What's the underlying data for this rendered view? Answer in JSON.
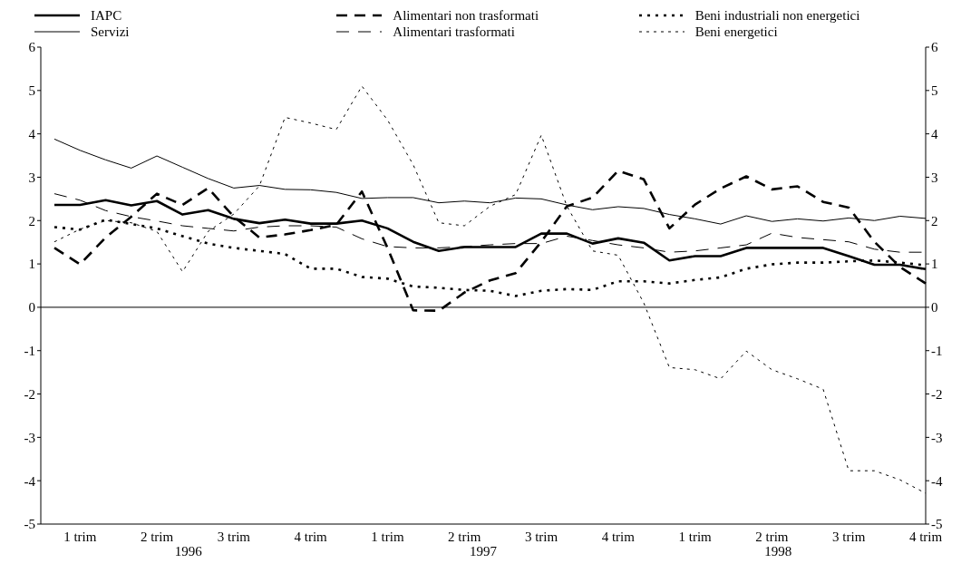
{
  "chart_data": {
    "type": "line",
    "categories": [
      null,
      "1 trim",
      null,
      null,
      "2 trim",
      null,
      null,
      "3 trim",
      null,
      null,
      "4 trim",
      null,
      null,
      "1 trim",
      null,
      null,
      "2 trim",
      null,
      null,
      "3 trim",
      null,
      null,
      "4 trim",
      null,
      null,
      "1 trim",
      null,
      null,
      "2 trim",
      null,
      null,
      "3 trim",
      null,
      null,
      "4 trim"
    ],
    "series": [
      {
        "name": "IAPC",
        "color": "#000000",
        "line_style": "solid",
        "values": [
          2.36,
          2.36,
          2.47,
          2.35,
          2.45,
          2.14,
          2.24,
          2.04,
          1.94,
          2.02,
          1.93,
          1.93,
          2.0,
          1.82,
          1.51,
          1.3,
          1.39,
          1.39,
          1.39,
          1.7,
          1.7,
          1.47,
          1.59,
          1.49,
          1.08,
          1.18,
          1.18,
          1.37,
          1.37,
          1.37,
          1.37,
          1.18,
          0.98,
          0.98,
          0.88
        ]
      },
      {
        "name": "Servizi",
        "color": "#000000",
        "line_style": "solid",
        "values": [
          3.88,
          3.62,
          3.4,
          3.21,
          3.49,
          3.23,
          2.97,
          2.75,
          2.81,
          2.72,
          2.71,
          2.65,
          2.51,
          2.53,
          2.53,
          2.41,
          2.45,
          2.41,
          2.52,
          2.5,
          2.36,
          2.25,
          2.32,
          2.28,
          2.14,
          2.04,
          1.92,
          2.11,
          1.98,
          2.04,
          1.99,
          2.06,
          2.0,
          2.1,
          2.05
        ]
      },
      {
        "name": "Alimentari non trasformati",
        "color": "#000000",
        "line_style": "dashed",
        "values": [
          1.37,
          0.99,
          1.61,
          2.09,
          2.62,
          2.36,
          2.75,
          2.09,
          1.61,
          1.68,
          1.78,
          1.9,
          2.67,
          1.37,
          -0.07,
          -0.08,
          0.34,
          0.62,
          0.79,
          1.51,
          2.33,
          2.53,
          3.15,
          2.95,
          1.82,
          2.37,
          2.74,
          3.02,
          2.72,
          2.79,
          2.43,
          2.3,
          1.51,
          0.93,
          0.55
        ]
      },
      {
        "name": "Alimentari trasformati",
        "color": "#000000",
        "line_style": "dashed",
        "values": [
          2.62,
          2.47,
          2.23,
          2.09,
          1.99,
          1.88,
          1.82,
          1.76,
          1.85,
          1.88,
          1.88,
          1.85,
          1.58,
          1.4,
          1.37,
          1.37,
          1.4,
          1.44,
          1.47,
          1.47,
          1.64,
          1.54,
          1.44,
          1.37,
          1.27,
          1.3,
          1.37,
          1.44,
          1.71,
          1.61,
          1.56,
          1.51,
          1.34,
          1.27,
          1.27
        ]
      },
      {
        "name": "Beni industriali non energetici",
        "color": "#000000",
        "line_style": "dotted",
        "values": [
          1.85,
          1.79,
          2.02,
          1.92,
          1.82,
          1.64,
          1.47,
          1.37,
          1.3,
          1.23,
          0.89,
          0.89,
          0.7,
          0.66,
          0.48,
          0.45,
          0.4,
          0.38,
          0.26,
          0.38,
          0.42,
          0.4,
          0.6,
          0.6,
          0.55,
          0.63,
          0.69,
          0.89,
          0.99,
          1.03,
          1.03,
          1.06,
          1.08,
          1.03,
          0.97
        ]
      },
      {
        "name": "Beni energetici",
        "color": "#000000",
        "line_style": "dotted",
        "values": [
          1.51,
          1.8,
          2.0,
          1.95,
          1.75,
          0.82,
          1.75,
          2.15,
          2.8,
          4.38,
          4.25,
          4.1,
          5.1,
          4.32,
          3.29,
          1.95,
          1.88,
          2.33,
          2.6,
          3.97,
          2.33,
          1.3,
          1.2,
          0.1,
          -1.39,
          -1.44,
          -1.65,
          -1.01,
          -1.44,
          -1.65,
          -1.89,
          -3.77,
          -3.77,
          -3.98,
          -4.29
        ]
      }
    ],
    "ylim": [
      -5,
      6
    ],
    "yticks": [
      -5,
      -4,
      -3,
      -2,
      -1,
      0,
      1,
      2,
      3,
      4,
      5,
      6
    ],
    "y2lim": [
      -5,
      6
    ],
    "y2ticks": [
      -5,
      -4,
      -3,
      -2,
      -1,
      0,
      1,
      2,
      3,
      4,
      5,
      6
    ],
    "ref_lines": [
      {
        "axis": "y",
        "value": 0,
        "color": "#000000"
      }
    ],
    "annotations": [
      "1996",
      "1997",
      "1998"
    ],
    "legend": "top",
    "marker": "none"
  }
}
